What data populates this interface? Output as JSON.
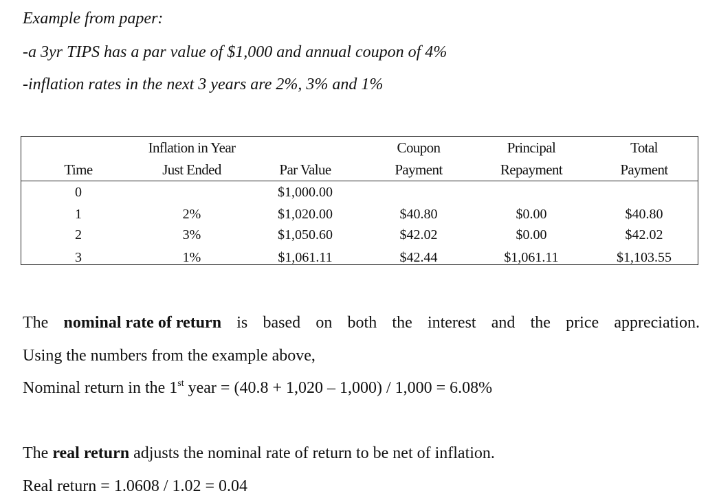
{
  "intro": {
    "heading": "Example from paper:",
    "line1": "-a 3yr TIPS has a par value of $1,000 and annual coupon of 4%",
    "line2": "-inflation rates in the next 3 years are 2%, 3% and 1%"
  },
  "table": {
    "headers": {
      "time": [
        "",
        "Time"
      ],
      "inflation": [
        "Inflation in Year",
        "Just Ended"
      ],
      "par": [
        "",
        "Par Value"
      ],
      "coupon": [
        "Coupon",
        "Payment"
      ],
      "principal": [
        "Principal",
        "Repayment"
      ],
      "total": [
        "Total",
        "Payment"
      ]
    },
    "rows": [
      {
        "time": "0",
        "inflation": "",
        "par": "$1,000.00",
        "coupon": "",
        "principal": "",
        "total": ""
      },
      {
        "time": "1",
        "inflation": "2%",
        "par": "$1,020.00",
        "coupon": "$40.80",
        "principal": "$0.00",
        "total": "$40.80"
      },
      {
        "time": "2",
        "inflation": "3%",
        "par": "$1,050.60",
        "coupon": "$42.02",
        "principal": "$0.00",
        "total": "$42.02"
      },
      {
        "time": "3",
        "inflation": "1%",
        "par": "$1,061.11",
        "coupon": "$42.44",
        "principal": "$1,061.11",
        "total": "$1,103.55"
      }
    ]
  },
  "nominal": {
    "sentence_words": [
      "The",
      "nominal rate of return",
      "is",
      "based",
      "on",
      "both",
      "the",
      "interest",
      "and",
      "the",
      "price",
      "appreciation."
    ],
    "line2": "Using the numbers from the example above,",
    "formula_pre": "Nominal return in the 1",
    "formula_sup": "st",
    "formula_post": " year = (40.8 + 1,020 – 1,000) / 1,000 = 6.08%"
  },
  "real": {
    "pre": "The ",
    "bold": "real return",
    "post": " adjusts the nominal rate of return to be net of inflation.",
    "formula": "Real return = 1.0608 / 1.02 = 0.04"
  }
}
